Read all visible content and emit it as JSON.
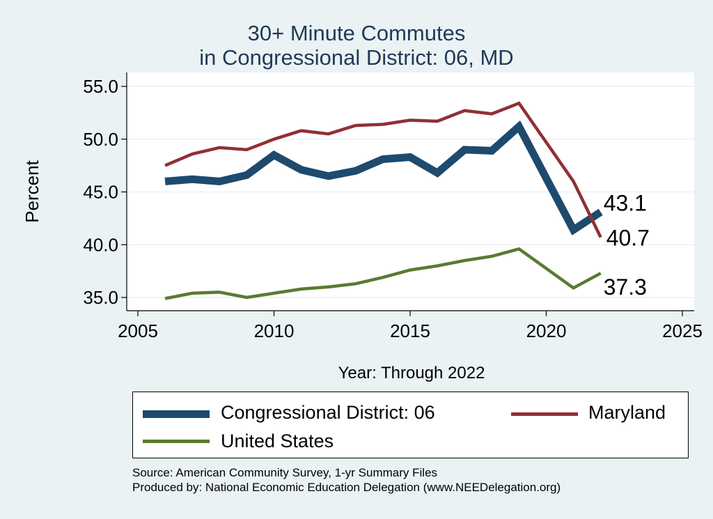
{
  "chart_data": {
    "type": "line",
    "title_line1": "30+ Minute Commutes",
    "title_line2": "in Congressional District:  06, MD",
    "xlabel": "Year: Through 2022",
    "ylabel": "Percent",
    "xlim": [
      2005,
      2025
    ],
    "ylim": [
      34.5,
      55.5
    ],
    "xticks": [
      2005,
      2010,
      2015,
      2020,
      2025
    ],
    "yticks": [
      35.0,
      40.0,
      45.0,
      50.0,
      55.0
    ],
    "ytick_labels": [
      "35.0",
      "40.0",
      "45.0",
      "50.0",
      "55.0"
    ],
    "grid": true,
    "series": [
      {
        "name": "Congressional District:  06",
        "color": "#1e4a6e",
        "x": [
          2006,
          2007,
          2008,
          2009,
          2010,
          2011,
          2012,
          2013,
          2014,
          2015,
          2016,
          2017,
          2018,
          2019,
          2021,
          2022
        ],
        "values": [
          46.0,
          46.2,
          46.0,
          46.6,
          48.5,
          47.1,
          46.5,
          47.0,
          48.1,
          48.3,
          46.8,
          49.0,
          48.9,
          51.2,
          41.4,
          43.1
        ],
        "end_label": "43.1"
      },
      {
        "name": "Maryland",
        "color": "#903034",
        "x": [
          2006,
          2007,
          2008,
          2009,
          2010,
          2011,
          2012,
          2013,
          2014,
          2015,
          2016,
          2017,
          2018,
          2019,
          2021,
          2022
        ],
        "values": [
          47.5,
          48.6,
          49.2,
          49.0,
          50.0,
          50.8,
          50.5,
          51.3,
          51.4,
          51.8,
          51.7,
          52.7,
          52.4,
          53.4,
          46.0,
          40.7
        ],
        "end_label": "40.7"
      },
      {
        "name": "United States",
        "color": "#5a7a32",
        "x": [
          2006,
          2007,
          2008,
          2009,
          2010,
          2011,
          2012,
          2013,
          2014,
          2015,
          2016,
          2017,
          2018,
          2019,
          2021,
          2022
        ],
        "values": [
          34.9,
          35.4,
          35.5,
          35.0,
          35.4,
          35.8,
          36.0,
          36.3,
          36.9,
          37.6,
          38.0,
          38.5,
          38.9,
          39.6,
          35.9,
          37.3
        ],
        "end_label": "37.3"
      }
    ],
    "legend": {
      "placement": "bottom",
      "entries": [
        "Congressional District:  06",
        "Maryland",
        "United States"
      ]
    },
    "source_line1": "Source: American Community Survey, 1-yr Summary Files",
    "source_line2": "Produced by: National Economic Education Delegation (www.NEEDelegation.org)"
  }
}
